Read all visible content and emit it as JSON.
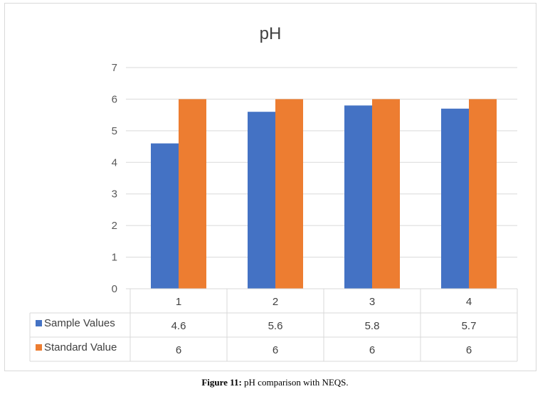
{
  "caption": {
    "label": "Figure 11:",
    "text": "pH comparison with NEQS."
  },
  "chart_data": {
    "type": "bar",
    "title": "pH",
    "categories": [
      "1",
      "2",
      "3",
      "4"
    ],
    "ylim": [
      0,
      7
    ],
    "yticks": [
      0,
      1,
      2,
      3,
      4,
      5,
      6,
      7
    ],
    "grid": true,
    "legend": "data-table",
    "series": [
      {
        "name": "Sample Values",
        "values": [
          4.6,
          5.6,
          5.8,
          5.7
        ],
        "display": [
          "4.6",
          "5.6",
          "5.8",
          "5.7"
        ],
        "color": "#4472C4"
      },
      {
        "name": "Standard Value",
        "values": [
          6,
          6,
          6,
          6
        ],
        "display": [
          "6",
          "6",
          "6",
          "6"
        ],
        "color": "#ED7D31"
      }
    ]
  }
}
